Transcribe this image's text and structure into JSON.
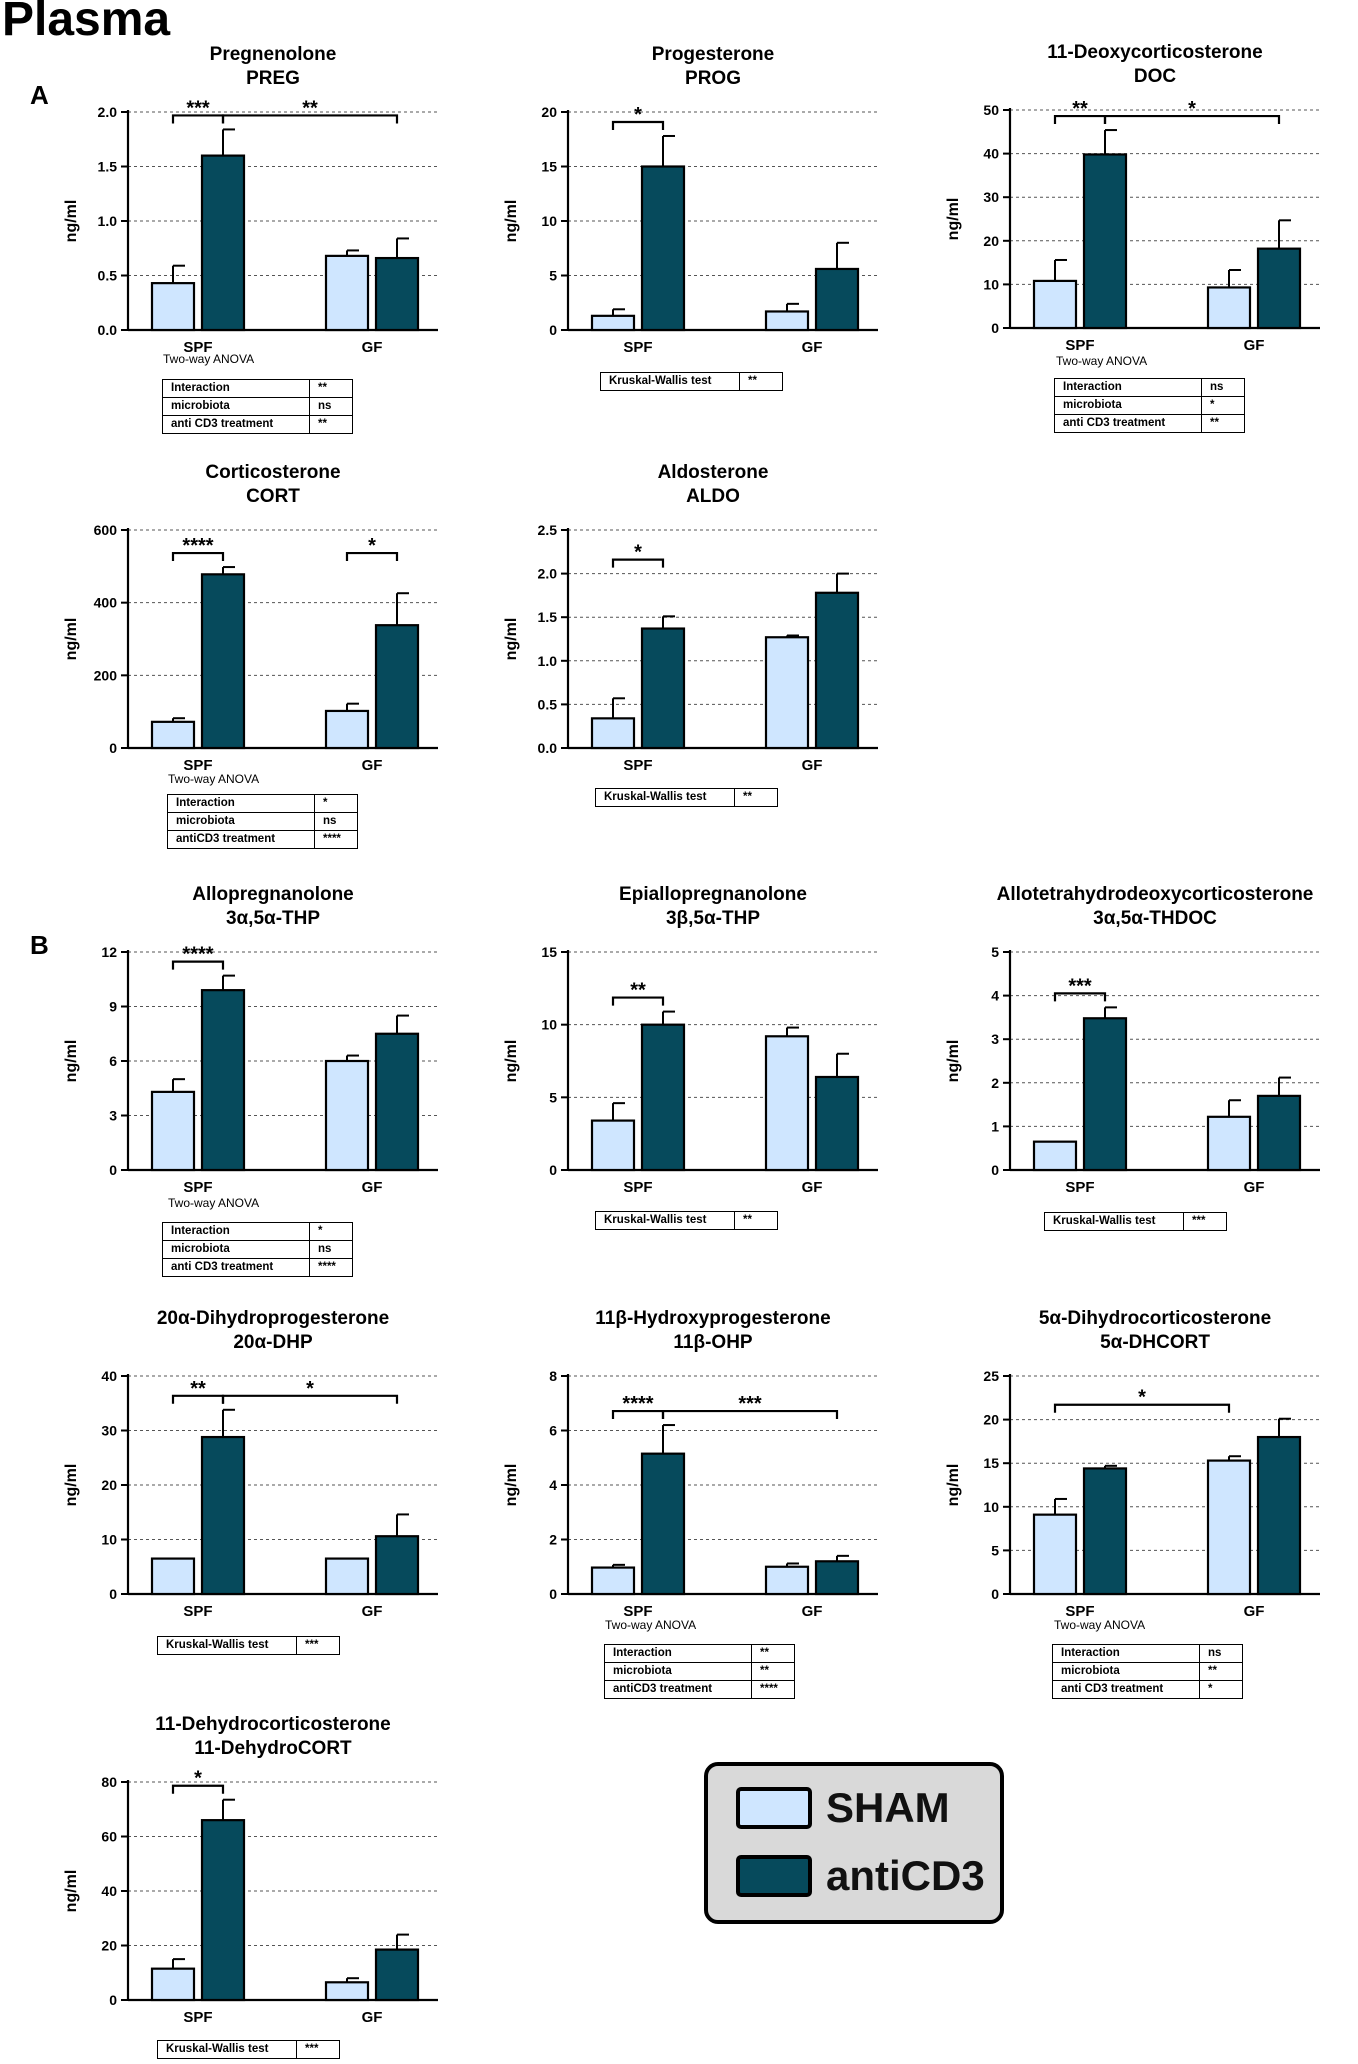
{
  "page_title": "Plasma",
  "panel_labels": [
    "A",
    "B"
  ],
  "colors": {
    "sham": "#cfe6ff",
    "anticd3": "#064a5c",
    "outline": "#000000",
    "legend_bg": "#d9d9d9"
  },
  "legend": {
    "items": [
      {
        "label": "SHAM",
        "color": "#cfe6ff"
      },
      {
        "label": "antiCD3",
        "color": "#064a5c"
      }
    ]
  },
  "chart_data": [
    {
      "id": "preg",
      "type": "bar",
      "title": "Pregnenolone",
      "subtitle": "PREG",
      "ylabel": "ng/ml",
      "ylim": [
        0,
        2.0
      ],
      "yticks": [
        "0.0",
        "0.5",
        "1.0",
        "1.5",
        "2.0"
      ],
      "categories": [
        "SPF",
        "GF"
      ],
      "series": [
        {
          "name": "SHAM",
          "values": [
            0.43,
            0.68
          ],
          "errors": [
            0.16,
            0.05
          ]
        },
        {
          "name": "antiCD3",
          "values": [
            1.6,
            0.66
          ],
          "errors": [
            0.24,
            0.18
          ]
        }
      ],
      "significance": [
        {
          "from": [
            0,
            0
          ],
          "to": [
            0,
            1
          ],
          "label": "***"
        },
        {
          "from": [
            0,
            1
          ],
          "to": [
            1,
            1
          ],
          "label": "**"
        }
      ],
      "stats": {
        "test": "Two-way ANOVA",
        "rows": [
          {
            "label": "Interaction",
            "value": "**"
          },
          {
            "label": "microbiota",
            "value": "ns"
          },
          {
            "label": "anti CD3 treatment",
            "value": "**"
          }
        ]
      }
    },
    {
      "id": "prog",
      "type": "bar",
      "title": "Progesterone",
      "subtitle": "PROG",
      "ylabel": "ng/ml",
      "ylim": [
        0,
        20
      ],
      "yticks": [
        "0",
        "5",
        "10",
        "15",
        "20"
      ],
      "categories": [
        "SPF",
        "GF"
      ],
      "series": [
        {
          "name": "SHAM",
          "values": [
            1.3,
            1.7
          ],
          "errors": [
            0.6,
            0.7
          ]
        },
        {
          "name": "antiCD3",
          "values": [
            15.0,
            5.6
          ],
          "errors": [
            2.8,
            2.4
          ]
        }
      ],
      "significance": [
        {
          "from": [
            0,
            0
          ],
          "to": [
            0,
            1
          ],
          "label": "*"
        }
      ],
      "stats": {
        "test": "Kruskal-Wallis test",
        "value": "**"
      }
    },
    {
      "id": "doc",
      "type": "bar",
      "title": "11-Deoxycorticosterone",
      "subtitle": "DOC",
      "ylabel": "ng/ml",
      "ylim": [
        0,
        50
      ],
      "yticks": [
        "0",
        "10",
        "20",
        "30",
        "40",
        "50"
      ],
      "categories": [
        "SPF",
        "GF"
      ],
      "series": [
        {
          "name": "SHAM",
          "values": [
            10.8,
            9.3
          ],
          "errors": [
            4.8,
            4.0
          ]
        },
        {
          "name": "antiCD3",
          "values": [
            39.8,
            18.2
          ],
          "errors": [
            5.6,
            6.5
          ]
        }
      ],
      "significance": [
        {
          "from": [
            0,
            0
          ],
          "to": [
            0,
            1
          ],
          "label": "**"
        },
        {
          "from": [
            0,
            1
          ],
          "to": [
            1,
            1
          ],
          "label": "*"
        }
      ],
      "stats": {
        "test": "Two-way ANOVA",
        "rows": [
          {
            "label": "Interaction",
            "value": "ns"
          },
          {
            "label": "microbiota",
            "value": "*"
          },
          {
            "label": "anti CD3 treatment",
            "value": "**"
          }
        ]
      }
    },
    {
      "id": "cort",
      "type": "bar",
      "title": "Corticosterone",
      "subtitle": "CORT",
      "ylabel": "ng/ml",
      "ylim": [
        0,
        600
      ],
      "yticks": [
        "0",
        "200",
        "400",
        "600"
      ],
      "categories": [
        "SPF",
        "GF"
      ],
      "series": [
        {
          "name": "SHAM",
          "values": [
            72,
            102
          ],
          "errors": [
            10,
            20
          ]
        },
        {
          "name": "antiCD3",
          "values": [
            478,
            338
          ],
          "errors": [
            20,
            88
          ]
        }
      ],
      "significance": [
        {
          "from": [
            0,
            0
          ],
          "to": [
            0,
            1
          ],
          "label": "****"
        },
        {
          "from": [
            1,
            0
          ],
          "to": [
            1,
            1
          ],
          "label": "*"
        }
      ],
      "stats": {
        "test": "Two-way ANOVA",
        "rows": [
          {
            "label": "Interaction",
            "value": "*"
          },
          {
            "label": "microbiota",
            "value": "ns"
          },
          {
            "label": "antiCD3 treatment",
            "value": "****"
          }
        ]
      }
    },
    {
      "id": "aldo",
      "type": "bar",
      "title": "Aldosterone",
      "subtitle": "ALDO",
      "ylabel": "ng/ml",
      "ylim": [
        0,
        2.5
      ],
      "yticks": [
        "0.0",
        "0.5",
        "1.0",
        "1.5",
        "2.0",
        "2.5"
      ],
      "categories": [
        "SPF",
        "GF"
      ],
      "series": [
        {
          "name": "SHAM",
          "values": [
            0.34,
            1.27
          ],
          "errors": [
            0.23,
            0.02
          ]
        },
        {
          "name": "antiCD3",
          "values": [
            1.37,
            1.78
          ],
          "errors": [
            0.14,
            0.22
          ]
        }
      ],
      "significance": [
        {
          "from": [
            0,
            0
          ],
          "to": [
            0,
            1
          ],
          "label": "*"
        }
      ],
      "stats": {
        "test": "Kruskal-Wallis test",
        "value": "**"
      }
    },
    {
      "id": "thp",
      "type": "bar",
      "title": "Allopregnanolone",
      "subtitle": "3α,5α-THP",
      "ylabel": "ng/ml",
      "ylim": [
        0,
        12
      ],
      "yticks": [
        "0",
        "3",
        "6",
        "9",
        "12"
      ],
      "categories": [
        "SPF",
        "GF"
      ],
      "series": [
        {
          "name": "SHAM",
          "values": [
            4.3,
            6.0
          ],
          "errors": [
            0.7,
            0.3
          ]
        },
        {
          "name": "antiCD3",
          "values": [
            9.9,
            7.5
          ],
          "errors": [
            0.8,
            1.0
          ]
        }
      ],
      "significance": [
        {
          "from": [
            0,
            0
          ],
          "to": [
            0,
            1
          ],
          "label": "****"
        }
      ],
      "stats": {
        "test": "Two-way ANOVA",
        "rows": [
          {
            "label": "Interaction",
            "value": "*"
          },
          {
            "label": "microbiota",
            "value": "ns"
          },
          {
            "label": "anti CD3 treatment",
            "value": "****"
          }
        ]
      }
    },
    {
      "id": "epi",
      "type": "bar",
      "title": "Epiallopregnanolone",
      "subtitle": "3β,5α-THP",
      "ylabel": "ng/ml",
      "ylim": [
        0,
        15
      ],
      "yticks": [
        "0",
        "5",
        "10",
        "15"
      ],
      "categories": [
        "SPF",
        "GF"
      ],
      "series": [
        {
          "name": "SHAM",
          "values": [
            3.4,
            9.2
          ],
          "errors": [
            1.2,
            0.6
          ]
        },
        {
          "name": "antiCD3",
          "values": [
            10.0,
            6.4
          ],
          "errors": [
            0.9,
            1.6
          ]
        }
      ],
      "significance": [
        {
          "from": [
            0,
            0
          ],
          "to": [
            0,
            1
          ],
          "label": "**"
        }
      ],
      "stats": {
        "test": "Kruskal-Wallis test",
        "value": "**"
      }
    },
    {
      "id": "thdoc",
      "type": "bar",
      "title": "Allotetrahydrodeoxycorticosterone",
      "subtitle": "3α,5α-THDOC",
      "ylabel": "ng/ml",
      "ylim": [
        0,
        5
      ],
      "yticks": [
        "0",
        "1",
        "2",
        "3",
        "4",
        "5"
      ],
      "categories": [
        "SPF",
        "GF"
      ],
      "series": [
        {
          "name": "SHAM",
          "values": [
            0.65,
            1.22
          ],
          "errors": [
            0,
            0.38
          ]
        },
        {
          "name": "antiCD3",
          "values": [
            3.48,
            1.7
          ],
          "errors": [
            0.25,
            0.42
          ]
        }
      ],
      "significance": [
        {
          "from": [
            0,
            0
          ],
          "to": [
            0,
            1
          ],
          "label": "***"
        }
      ],
      "stats": {
        "test": "Kruskal-Wallis test",
        "value": "***"
      }
    },
    {
      "id": "dhp",
      "type": "bar",
      "title": "20α-Dihydroprogesterone",
      "subtitle": "20α-DHP",
      "ylabel": "ng/ml",
      "ylim": [
        0,
        40
      ],
      "yticks": [
        "0",
        "10",
        "20",
        "30",
        "40"
      ],
      "categories": [
        "SPF",
        "GF"
      ],
      "series": [
        {
          "name": "SHAM",
          "values": [
            6.5,
            6.5
          ],
          "errors": [
            0,
            0
          ]
        },
        {
          "name": "antiCD3",
          "values": [
            28.8,
            10.6
          ],
          "errors": [
            5.0,
            4.0
          ]
        }
      ],
      "significance": [
        {
          "from": [
            0,
            0
          ],
          "to": [
            0,
            1
          ],
          "label": "**"
        },
        {
          "from": [
            0,
            1
          ],
          "to": [
            1,
            1
          ],
          "label": "*"
        }
      ],
      "stats": {
        "test": "Kruskal-Wallis test",
        "value": "***"
      }
    },
    {
      "id": "ohp",
      "type": "bar",
      "title": "11β-Hydroxyprogesterone",
      "subtitle": "11β-OHP",
      "ylabel": "ng/ml",
      "ylim": [
        0,
        8
      ],
      "yticks": [
        "0",
        "2",
        "4",
        "6",
        "8"
      ],
      "categories": [
        "SPF",
        "GF"
      ],
      "series": [
        {
          "name": "SHAM",
          "values": [
            0.97,
            1.0
          ],
          "errors": [
            0.1,
            0.12
          ]
        },
        {
          "name": "antiCD3",
          "values": [
            5.15,
            1.2
          ],
          "errors": [
            1.05,
            0.2
          ]
        }
      ],
      "significance": [
        {
          "from": [
            0,
            0
          ],
          "to": [
            0,
            1
          ],
          "label": "****"
        },
        {
          "from": [
            0,
            1
          ],
          "to": [
            1,
            1
          ],
          "label": "***"
        }
      ],
      "stats": {
        "test": "Two-way ANOVA",
        "rows": [
          {
            "label": "Interaction",
            "value": "**"
          },
          {
            "label": "microbiota",
            "value": "**"
          },
          {
            "label": "antiCD3 treatment",
            "value": "****"
          }
        ]
      }
    },
    {
      "id": "dhcort",
      "type": "bar",
      "title": "5α-Dihydrocorticosterone",
      "subtitle": "5α-DHCORT",
      "ylabel": "ng/ml",
      "ylim": [
        0,
        25
      ],
      "yticks": [
        "0",
        "5",
        "10",
        "15",
        "20",
        "25"
      ],
      "categories": [
        "SPF",
        "GF"
      ],
      "series": [
        {
          "name": "SHAM",
          "values": [
            9.1,
            15.3
          ],
          "errors": [
            1.8,
            0.5
          ]
        },
        {
          "name": "antiCD3",
          "values": [
            14.4,
            18.0
          ],
          "errors": [
            0.3,
            2.1
          ]
        }
      ],
      "significance": [
        {
          "from": [
            0,
            0
          ],
          "to": [
            1,
            0
          ],
          "label": "*"
        }
      ],
      "stats": {
        "test": "Two-way ANOVA",
        "rows": [
          {
            "label": "Interaction",
            "value": "ns"
          },
          {
            "label": "microbiota",
            "value": "**"
          },
          {
            "label": "anti CD3 treatment",
            "value": "*"
          }
        ]
      }
    },
    {
      "id": "dehydrocort",
      "type": "bar",
      "title": "11-Dehydrocorticosterone",
      "subtitle": "11-DehydroCORT",
      "ylabel": "ng/ml",
      "ylim": [
        0,
        80
      ],
      "yticks": [
        "0",
        "20",
        "40",
        "60",
        "80"
      ],
      "categories": [
        "SPF",
        "GF"
      ],
      "series": [
        {
          "name": "SHAM",
          "values": [
            11.5,
            6.5
          ],
          "errors": [
            3.5,
            1.5
          ]
        },
        {
          "name": "antiCD3",
          "values": [
            66,
            18.5
          ],
          "errors": [
            7.5,
            5.5
          ]
        }
      ],
      "significance": [
        {
          "from": [
            0,
            0
          ],
          "to": [
            0,
            1
          ],
          "label": "*"
        }
      ],
      "stats": {
        "test": "Kruskal-Wallis test",
        "value": "***"
      }
    }
  ]
}
